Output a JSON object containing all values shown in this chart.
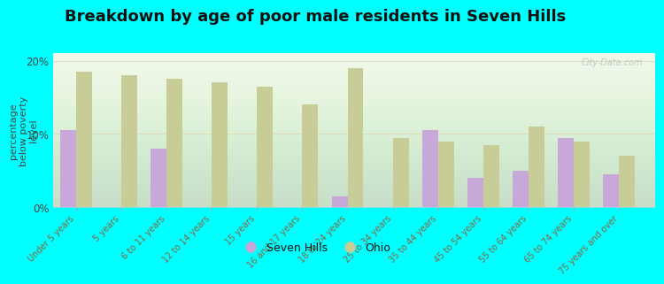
{
  "title": "Breakdown by age of poor male residents in Seven Hills",
  "categories": [
    "Under 5 years",
    "5 years",
    "6 to 11 years",
    "12 to 14 years",
    "15 years",
    "16 and 17 years",
    "18 to 24 years",
    "25 to 34 years",
    "35 to 44 years",
    "45 to 54 years",
    "55 to 64 years",
    "65 to 74 years",
    "75 years and over"
  ],
  "seven_hills": [
    10.5,
    0.0,
    8.0,
    0.0,
    0.0,
    0.0,
    1.5,
    0.0,
    10.5,
    4.0,
    5.0,
    9.5,
    4.5
  ],
  "ohio": [
    18.5,
    18.0,
    17.5,
    17.0,
    16.5,
    14.0,
    19.0,
    9.5,
    9.0,
    8.5,
    11.0,
    9.0,
    7.0
  ],
  "seven_hills_color": "#c8a8d8",
  "ohio_color": "#c8cc96",
  "background_color": "#00ffff",
  "plot_bg_top": "#f8fff0",
  "plot_bg_bottom": "#e8f8e0",
  "ylabel": "percentage\nbelow poverty\nlevel",
  "ylim": [
    0,
    21
  ],
  "yticks": [
    0,
    10,
    20
  ],
  "ytick_labels": [
    "0%",
    "10%",
    "20%"
  ],
  "bar_width": 0.35,
  "title_fontsize": 13,
  "legend_labels": [
    "Seven Hills",
    "Ohio"
  ],
  "watermark": "City-Data.com",
  "tick_color": "#886644",
  "ylabel_color": "#444444",
  "title_color": "#111111"
}
